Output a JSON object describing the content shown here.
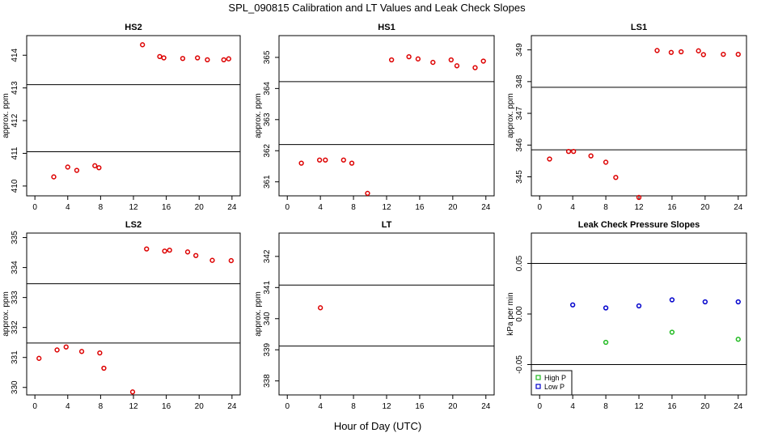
{
  "title": "SPL_090815  Calibration and LT Values and Leak Check Slopes",
  "xlabel": "Hour of Day (UTC)",
  "colors": {
    "red": "#dd0000",
    "blue": "#0000cc",
    "green": "#22bb22",
    "line": "#000000"
  },
  "chart_data": [
    {
      "type": "scatter",
      "title": "HS2",
      "ylabel": "approx. ppm",
      "xlim": [
        -1,
        25
      ],
      "ylim": [
        409.7,
        414.6
      ],
      "xticks": [
        0,
        4,
        8,
        12,
        16,
        20,
        24
      ],
      "yticks": [
        410,
        411,
        412,
        413,
        414
      ],
      "hlines": [
        411.05,
        413.1
      ],
      "series": [
        {
          "color": "red",
          "marker": "circle",
          "points": [
            [
              2.3,
              410.28
            ],
            [
              4.0,
              410.58
            ],
            [
              5.1,
              410.48
            ],
            [
              7.3,
              410.62
            ],
            [
              7.8,
              410.56
            ],
            [
              13.1,
              414.32
            ],
            [
              15.2,
              413.96
            ],
            [
              15.7,
              413.92
            ],
            [
              18.0,
              413.9
            ],
            [
              19.8,
              413.92
            ],
            [
              21.0,
              413.86
            ],
            [
              23.0,
              413.86
            ],
            [
              23.6,
              413.89
            ]
          ]
        }
      ]
    },
    {
      "type": "scatter",
      "title": "HS1",
      "ylabel": "approx. ppm",
      "xlim": [
        -1,
        25
      ],
      "ylim": [
        360.55,
        365.7
      ],
      "xticks": [
        0,
        4,
        8,
        12,
        16,
        20,
        24
      ],
      "yticks": [
        361,
        362,
        363,
        364,
        365
      ],
      "hlines": [
        362.2,
        364.22
      ],
      "series": [
        {
          "color": "red",
          "marker": "circle",
          "points": [
            [
              1.7,
              361.6
            ],
            [
              3.9,
              361.7
            ],
            [
              4.6,
              361.7
            ],
            [
              6.8,
              361.7
            ],
            [
              7.8,
              361.6
            ],
            [
              9.7,
              360.63
            ],
            [
              12.6,
              364.92
            ],
            [
              14.7,
              365.02
            ],
            [
              15.8,
              364.95
            ],
            [
              17.6,
              364.84
            ],
            [
              19.8,
              364.92
            ],
            [
              20.5,
              364.73
            ],
            [
              22.7,
              364.67
            ],
            [
              23.7,
              364.88
            ]
          ]
        }
      ]
    },
    {
      "type": "scatter",
      "title": "LS1",
      "ylabel": "approx. ppm",
      "xlim": [
        -1,
        25
      ],
      "ylim": [
        344.4,
        349.45
      ],
      "xticks": [
        0,
        4,
        8,
        12,
        16,
        20,
        24
      ],
      "yticks": [
        345,
        346,
        347,
        348,
        349
      ],
      "hlines": [
        345.85,
        347.82
      ],
      "series": [
        {
          "color": "red",
          "marker": "circle",
          "points": [
            [
              1.2,
              345.56
            ],
            [
              3.5,
              345.8
            ],
            [
              4.1,
              345.8
            ],
            [
              6.2,
              345.66
            ],
            [
              8.0,
              345.46
            ],
            [
              9.2,
              344.98
            ],
            [
              12.0,
              344.35
            ],
            [
              14.2,
              348.98
            ],
            [
              15.9,
              348.92
            ],
            [
              17.1,
              348.94
            ],
            [
              19.2,
              348.97
            ],
            [
              19.8,
              348.85
            ],
            [
              22.2,
              348.86
            ],
            [
              24.0,
              348.86
            ]
          ]
        }
      ]
    },
    {
      "type": "scatter",
      "title": "LS2",
      "ylabel": "approx. ppm",
      "xlim": [
        -1,
        25
      ],
      "ylim": [
        329.75,
        335.15
      ],
      "xticks": [
        0,
        4,
        8,
        12,
        16,
        20,
        24
      ],
      "yticks": [
        330,
        331,
        332,
        333,
        334,
        335
      ],
      "hlines": [
        331.48,
        333.46
      ],
      "series": [
        {
          "color": "red",
          "marker": "circle",
          "points": [
            [
              0.5,
              330.97
            ],
            [
              2.7,
              331.25
            ],
            [
              3.8,
              331.35
            ],
            [
              5.7,
              331.2
            ],
            [
              7.9,
              331.15
            ],
            [
              8.4,
              330.64
            ],
            [
              11.9,
              329.85
            ],
            [
              13.6,
              334.62
            ],
            [
              15.8,
              334.55
            ],
            [
              16.4,
              334.58
            ],
            [
              18.6,
              334.52
            ],
            [
              19.6,
              334.4
            ],
            [
              21.6,
              334.24
            ],
            [
              23.9,
              334.23
            ]
          ]
        }
      ]
    },
    {
      "type": "scatter",
      "title": "LT",
      "ylabel": "approx. ppm",
      "xlim": [
        -1,
        25
      ],
      "ylim": [
        337.55,
        342.75
      ],
      "xticks": [
        0,
        4,
        8,
        12,
        16,
        20,
        24
      ],
      "yticks": [
        338,
        339,
        340,
        341,
        342
      ],
      "hlines": [
        339.12,
        341.08
      ],
      "series": [
        {
          "color": "red",
          "marker": "circle",
          "points": [
            [
              4.0,
              340.35
            ]
          ]
        }
      ]
    },
    {
      "type": "scatter",
      "title": "Leak Check Pressure Slopes",
      "ylabel": "kPa per min",
      "xlim": [
        -1,
        25
      ],
      "ylim": [
        -0.08,
        0.08
      ],
      "xticks": [
        0,
        4,
        8,
        12,
        16,
        20,
        24
      ],
      "yticks": [
        -0.05,
        0.0,
        0.05
      ],
      "ytick_labels": [
        "-0.05",
        "0.00",
        "0.05"
      ],
      "hlines": [
        -0.05,
        0.05
      ],
      "legend": {
        "position": "bottom-left",
        "entries": [
          {
            "label": "High P",
            "color": "green"
          },
          {
            "label": "Low P",
            "color": "blue"
          }
        ]
      },
      "series": [
        {
          "name": "High P",
          "color": "green",
          "marker": "circle",
          "points": [
            [
              8.0,
              -0.028
            ],
            [
              16.0,
              -0.018
            ],
            [
              24.0,
              -0.025
            ]
          ]
        },
        {
          "name": "Low P",
          "color": "blue",
          "marker": "circle",
          "points": [
            [
              4.0,
              0.009
            ],
            [
              8.0,
              0.006
            ],
            [
              12.0,
              0.008
            ],
            [
              16.0,
              0.014
            ],
            [
              20.0,
              0.012
            ],
            [
              24.0,
              0.012
            ]
          ]
        }
      ]
    }
  ]
}
